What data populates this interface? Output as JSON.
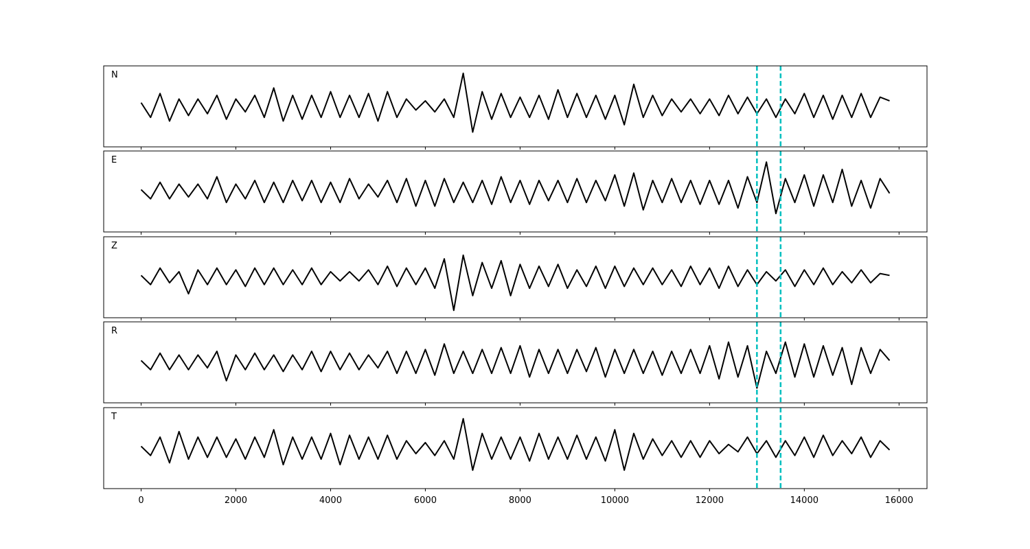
{
  "chart_data": [
    {
      "type": "line",
      "label": "N",
      "color": "#000000",
      "xlim": [
        -790,
        16590
      ],
      "ylim": [
        -1.1,
        1.1
      ],
      "x": [
        0,
        200,
        400,
        600,
        800,
        1000,
        1200,
        1400,
        1600,
        1800,
        2000,
        2200,
        2400,
        2600,
        2800,
        3000,
        3200,
        3400,
        3600,
        3800,
        4000,
        4200,
        4400,
        4600,
        4800,
        5000,
        5200,
        5400,
        5600,
        5800,
        6000,
        6200,
        6400,
        6600,
        6800,
        7000,
        7200,
        7400,
        7600,
        7800,
        8000,
        8200,
        8400,
        8600,
        8800,
        9000,
        9200,
        9400,
        9600,
        9800,
        10000,
        10200,
        10400,
        10600,
        10800,
        11000,
        11200,
        11400,
        11600,
        11800,
        12000,
        12200,
        12400,
        12600,
        12800,
        13000,
        13200,
        13400,
        13600,
        13800,
        14000,
        14200,
        14400,
        14600,
        14800,
        15000,
        15200,
        15400,
        15600,
        15800
      ],
      "values": [
        0.1,
        -0.3,
        0.35,
        -0.4,
        0.2,
        -0.25,
        0.2,
        -0.2,
        0.3,
        -0.35,
        0.2,
        -0.15,
        0.3,
        -0.3,
        0.5,
        -0.4,
        0.3,
        -0.35,
        0.3,
        -0.3,
        0.4,
        -0.3,
        0.3,
        -0.3,
        0.35,
        -0.4,
        0.4,
        -0.3,
        0.2,
        -0.1,
        0.15,
        -0.15,
        0.2,
        -0.3,
        0.9,
        -0.7,
        0.4,
        -0.35,
        0.35,
        -0.3,
        0.25,
        -0.3,
        0.3,
        -0.35,
        0.45,
        -0.3,
        0.35,
        -0.3,
        0.3,
        -0.35,
        0.3,
        -0.5,
        0.6,
        -0.3,
        0.3,
        -0.25,
        0.2,
        -0.15,
        0.2,
        -0.2,
        0.2,
        -0.25,
        0.3,
        -0.2,
        0.25,
        -0.2,
        0.2,
        -0.3,
        0.2,
        -0.2,
        0.35,
        -0.3,
        0.3,
        -0.35,
        0.3,
        -0.3,
        0.35,
        -0.3,
        0.25,
        0.15
      ],
      "vlines": [
        13000,
        13500
      ],
      "vline_color": "#00bfbf"
    },
    {
      "type": "line",
      "label": "E",
      "color": "#000000",
      "xlim": [
        -790,
        16590
      ],
      "ylim": [
        -1.1,
        1.1
      ],
      "x": [
        0,
        200,
        400,
        600,
        800,
        1000,
        1200,
        1400,
        1600,
        1800,
        2000,
        2200,
        2400,
        2600,
        2800,
        3000,
        3200,
        3400,
        3600,
        3800,
        4000,
        4200,
        4400,
        4600,
        4800,
        5000,
        5200,
        5400,
        5600,
        5800,
        6000,
        6200,
        6400,
        6600,
        6800,
        7000,
        7200,
        7400,
        7600,
        7800,
        8000,
        8200,
        8400,
        8600,
        8800,
        9000,
        9200,
        9400,
        9600,
        9800,
        10000,
        10200,
        10400,
        10600,
        10800,
        11000,
        11200,
        11400,
        11600,
        11800,
        12000,
        12200,
        12400,
        12600,
        12800,
        13000,
        13200,
        13400,
        13600,
        13800,
        14000,
        14200,
        14400,
        14600,
        14800,
        15000,
        15200,
        15400,
        15600,
        15800
      ],
      "values": [
        0.05,
        -0.2,
        0.25,
        -0.2,
        0.2,
        -0.15,
        0.2,
        -0.2,
        0.4,
        -0.3,
        0.2,
        -0.2,
        0.3,
        -0.3,
        0.25,
        -0.3,
        0.3,
        -0.25,
        0.3,
        -0.3,
        0.25,
        -0.3,
        0.35,
        -0.2,
        0.2,
        -0.15,
        0.3,
        -0.3,
        0.35,
        -0.4,
        0.3,
        -0.4,
        0.35,
        -0.3,
        0.25,
        -0.3,
        0.3,
        -0.35,
        0.4,
        -0.3,
        0.3,
        -0.35,
        0.3,
        -0.25,
        0.3,
        -0.3,
        0.35,
        -0.3,
        0.3,
        -0.25,
        0.45,
        -0.4,
        0.5,
        -0.5,
        0.3,
        -0.3,
        0.35,
        -0.3,
        0.3,
        -0.35,
        0.3,
        -0.35,
        0.3,
        -0.45,
        0.4,
        -0.3,
        0.8,
        -0.6,
        0.35,
        -0.3,
        0.45,
        -0.4,
        0.45,
        -0.3,
        0.6,
        -0.4,
        0.3,
        -0.45,
        0.35,
        -0.05
      ],
      "vlines": [
        13000,
        13500
      ],
      "vline_color": "#00bfbf"
    },
    {
      "type": "line",
      "label": "Z",
      "color": "#000000",
      "xlim": [
        -790,
        16590
      ],
      "ylim": [
        -1.1,
        1.1
      ],
      "x": [
        0,
        200,
        400,
        600,
        800,
        1000,
        1200,
        1400,
        1600,
        1800,
        2000,
        2200,
        2400,
        2600,
        2800,
        3000,
        3200,
        3400,
        3600,
        3800,
        4000,
        4200,
        4400,
        4600,
        4800,
        5000,
        5200,
        5400,
        5600,
        5800,
        6000,
        6200,
        6400,
        6600,
        6800,
        7000,
        7200,
        7400,
        7600,
        7800,
        8000,
        8200,
        8400,
        8600,
        8800,
        9000,
        9200,
        9400,
        9600,
        9800,
        10000,
        10200,
        10400,
        10600,
        10800,
        11000,
        11200,
        11400,
        11600,
        11800,
        12000,
        12200,
        12400,
        12600,
        12800,
        13000,
        13200,
        13400,
        13600,
        13800,
        14000,
        14200,
        14400,
        14600,
        14800,
        15000,
        15200,
        15400,
        15600,
        15800
      ],
      "values": [
        0.05,
        -0.2,
        0.25,
        -0.15,
        0.15,
        -0.45,
        0.2,
        -0.2,
        0.25,
        -0.2,
        0.2,
        -0.25,
        0.25,
        -0.2,
        0.25,
        -0.2,
        0.2,
        -0.2,
        0.25,
        -0.2,
        0.15,
        -0.1,
        0.15,
        -0.1,
        0.2,
        -0.2,
        0.3,
        -0.25,
        0.25,
        -0.2,
        0.25,
        -0.3,
        0.5,
        -0.9,
        0.6,
        -0.5,
        0.4,
        -0.3,
        0.45,
        -0.5,
        0.35,
        -0.3,
        0.3,
        -0.25,
        0.35,
        -0.3,
        0.2,
        -0.25,
        0.3,
        -0.3,
        0.3,
        -0.25,
        0.25,
        -0.2,
        0.25,
        -0.2,
        0.2,
        -0.25,
        0.3,
        -0.2,
        0.25,
        -0.3,
        0.3,
        -0.25,
        0.2,
        -0.2,
        0.15,
        -0.1,
        0.2,
        -0.25,
        0.2,
        -0.2,
        0.25,
        -0.2,
        0.15,
        -0.15,
        0.2,
        -0.15,
        0.1,
        0.05
      ],
      "vlines": [
        13000,
        13500
      ],
      "vline_color": "#00bfbf"
    },
    {
      "type": "line",
      "label": "R",
      "color": "#000000",
      "xlim": [
        -790,
        16590
      ],
      "ylim": [
        -1.1,
        1.1
      ],
      "x": [
        0,
        200,
        400,
        600,
        800,
        1000,
        1200,
        1400,
        1600,
        1800,
        2000,
        2200,
        2400,
        2600,
        2800,
        3000,
        3200,
        3400,
        3600,
        3800,
        4000,
        4200,
        4400,
        4600,
        4800,
        5000,
        5200,
        5400,
        5600,
        5800,
        6000,
        6200,
        6400,
        6600,
        6800,
        7000,
        7200,
        7400,
        7600,
        7800,
        8000,
        8200,
        8400,
        8600,
        8800,
        9000,
        9200,
        9400,
        9600,
        9800,
        10000,
        10200,
        10400,
        10600,
        10800,
        11000,
        11200,
        11400,
        11600,
        11800,
        12000,
        12200,
        12400,
        12600,
        12800,
        13000,
        13200,
        13400,
        13600,
        13800,
        14000,
        14200,
        14400,
        14600,
        14800,
        15000,
        15200,
        15400,
        15600,
        15800
      ],
      "values": [
        0.05,
        -0.2,
        0.25,
        -0.2,
        0.2,
        -0.2,
        0.2,
        -0.15,
        0.3,
        -0.5,
        0.2,
        -0.2,
        0.25,
        -0.2,
        0.2,
        -0.25,
        0.2,
        -0.2,
        0.3,
        -0.25,
        0.3,
        -0.2,
        0.25,
        -0.2,
        0.2,
        -0.15,
        0.3,
        -0.3,
        0.3,
        -0.3,
        0.35,
        -0.35,
        0.5,
        -0.3,
        0.3,
        -0.3,
        0.35,
        -0.3,
        0.4,
        -0.3,
        0.45,
        -0.4,
        0.35,
        -0.3,
        0.35,
        -0.3,
        0.35,
        -0.25,
        0.4,
        -0.4,
        0.35,
        -0.3,
        0.35,
        -0.3,
        0.3,
        -0.35,
        0.3,
        -0.3,
        0.35,
        -0.3,
        0.45,
        -0.45,
        0.55,
        -0.4,
        0.45,
        -0.7,
        0.3,
        -0.3,
        0.55,
        -0.4,
        0.5,
        -0.4,
        0.45,
        -0.35,
        0.4,
        -0.6,
        0.4,
        -0.3,
        0.35,
        0.05
      ],
      "vlines": [
        13000,
        13500
      ],
      "vline_color": "#00bfbf"
    },
    {
      "type": "line",
      "label": "T",
      "color": "#000000",
      "xlim": [
        -790,
        16590
      ],
      "ylim": [
        -1.1,
        1.1
      ],
      "x": [
        0,
        200,
        400,
        600,
        800,
        1000,
        1200,
        1400,
        1600,
        1800,
        2000,
        2200,
        2400,
        2600,
        2800,
        3000,
        3200,
        3400,
        3600,
        3800,
        4000,
        4200,
        4400,
        4600,
        4800,
        5000,
        5200,
        5400,
        5600,
        5800,
        6000,
        6200,
        6400,
        6600,
        6800,
        7000,
        7200,
        7400,
        7600,
        7800,
        8000,
        8200,
        8400,
        8600,
        8800,
        9000,
        9200,
        9400,
        9600,
        9800,
        10000,
        10200,
        10400,
        10600,
        10800,
        11000,
        11200,
        11400,
        11600,
        11800,
        12000,
        12200,
        12400,
        12600,
        12800,
        13000,
        13200,
        13400,
        13600,
        13800,
        14000,
        14200,
        14400,
        14600,
        14800,
        15000,
        15200,
        15400,
        15600,
        15800
      ],
      "values": [
        0.05,
        -0.2,
        0.3,
        -0.4,
        0.45,
        -0.3,
        0.3,
        -0.25,
        0.3,
        -0.25,
        0.25,
        -0.3,
        0.3,
        -0.25,
        0.5,
        -0.45,
        0.3,
        -0.3,
        0.3,
        -0.3,
        0.4,
        -0.45,
        0.35,
        -0.3,
        0.3,
        -0.3,
        0.35,
        -0.3,
        0.2,
        -0.15,
        0.15,
        -0.2,
        0.2,
        -0.3,
        0.8,
        -0.6,
        0.4,
        -0.3,
        0.3,
        -0.3,
        0.3,
        -0.35,
        0.4,
        -0.3,
        0.3,
        -0.3,
        0.35,
        -0.3,
        0.3,
        -0.35,
        0.5,
        -0.6,
        0.4,
        -0.3,
        0.25,
        -0.2,
        0.2,
        -0.25,
        0.2,
        -0.25,
        0.2,
        -0.15,
        0.1,
        -0.1,
        0.3,
        -0.15,
        0.2,
        -0.25,
        0.2,
        -0.2,
        0.3,
        -0.25,
        0.35,
        -0.2,
        0.2,
        -0.15,
        0.3,
        -0.25,
        0.2,
        -0.05
      ],
      "vlines": [
        13000,
        13500
      ],
      "vline_color": "#00bfbf",
      "xticks": [
        0,
        2000,
        4000,
        6000,
        8000,
        10000,
        12000,
        14000,
        16000
      ]
    }
  ]
}
